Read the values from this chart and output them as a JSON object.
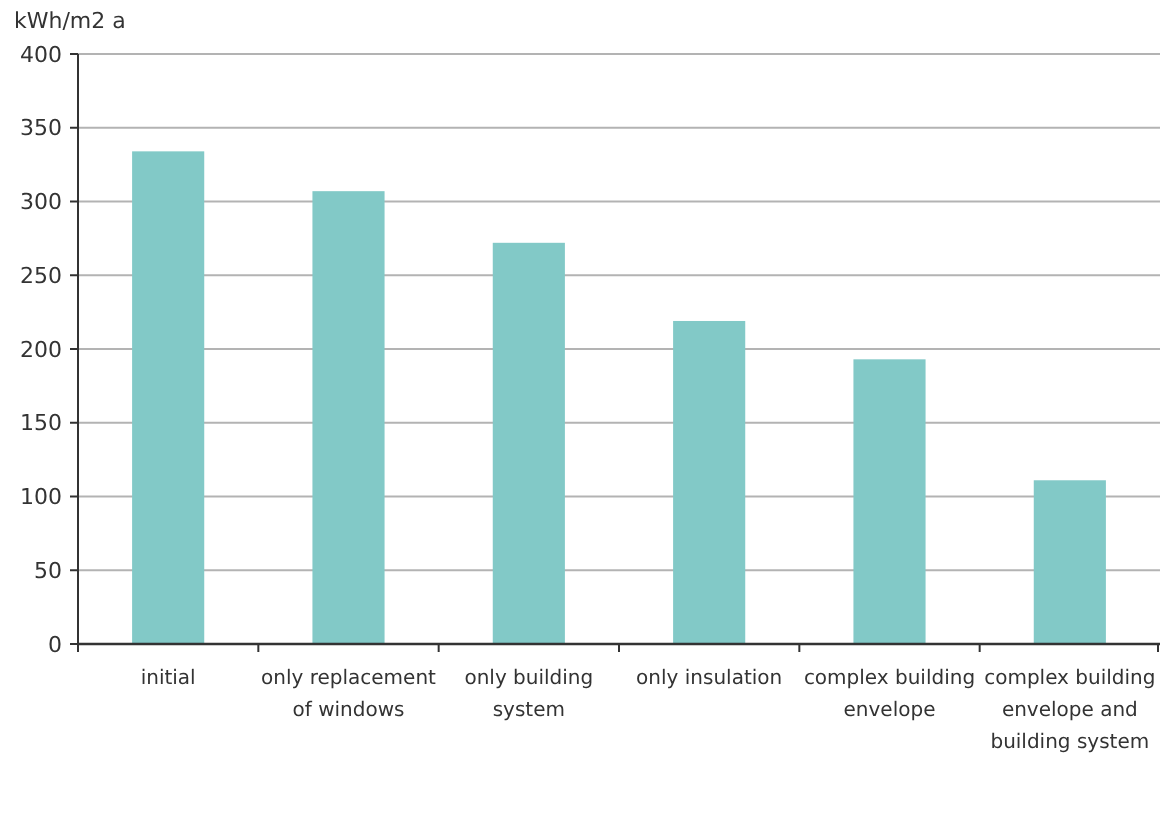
{
  "chart_data": {
    "type": "bar",
    "ylabel": "kWh/m2 a",
    "categories": [
      "initial",
      "only replacement of windows",
      "only building system",
      "only insulation",
      "complex building envelope",
      "complex building envelope and building system"
    ],
    "values": [
      334,
      307,
      272,
      219,
      193,
      111
    ],
    "color": "#82c9c7",
    "ylim": [
      0,
      400
    ],
    "yticks": [
      0,
      50,
      100,
      150,
      200,
      250,
      300,
      350,
      400
    ],
    "grid": "y"
  }
}
